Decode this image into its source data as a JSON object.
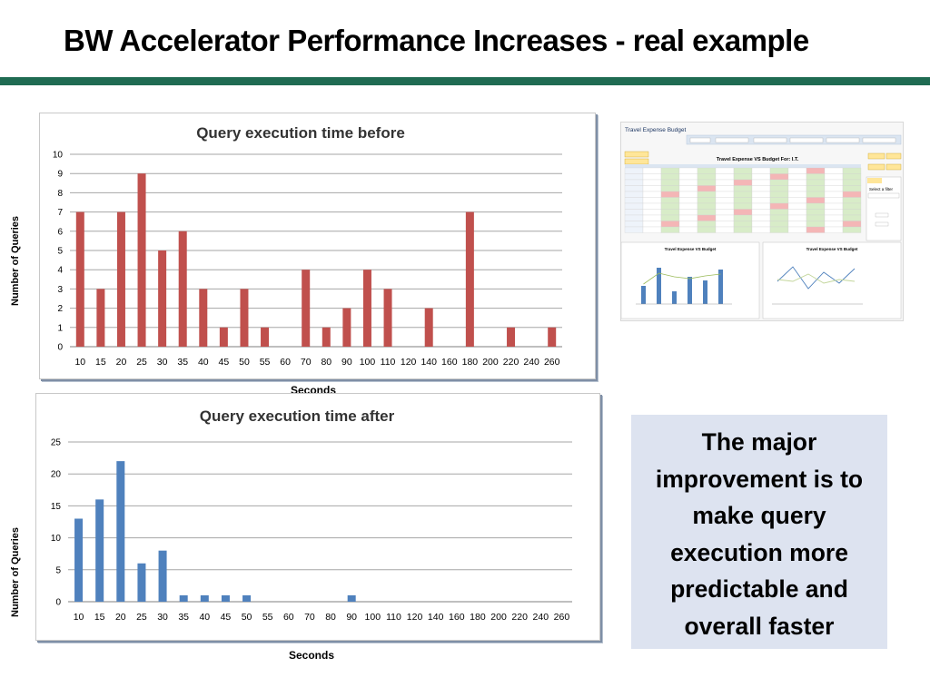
{
  "slide": {
    "title": "BW Accelerator Performance Increases - real example"
  },
  "note": {
    "lines": [
      "The major",
      "improvement is to",
      "make query",
      "execution more",
      "predictable and",
      "overall faster"
    ]
  },
  "app_screenshot": {
    "title": "Travel Expense Budget",
    "grid_title": "Travel Expense VS Budget For: I.T.",
    "chart1_title": "Travel Expense VS Budget",
    "chart2_title": "Travel Expense VS Budget",
    "filter_label": "Select a filter",
    "months": [
      "Jan",
      "Feb",
      "Mar",
      "Apr",
      "May",
      "Jun"
    ],
    "legend": [
      "Budget",
      "Actual"
    ]
  },
  "colors": {
    "before": "#c0504d",
    "after": "#4f81bd",
    "accent_rule": "#1f6b52",
    "note_bg": "#dde3f0"
  },
  "chart_data": [
    {
      "type": "bar",
      "title": "Query execution time before",
      "xlabel": "Seconds",
      "ylabel": "Number of Queries",
      "ylim": [
        0,
        10
      ],
      "grid": true,
      "categories": [
        "10",
        "15",
        "20",
        "25",
        "30",
        "35",
        "40",
        "45",
        "50",
        "55",
        "60",
        "70",
        "80",
        "90",
        "100",
        "110",
        "120",
        "140",
        "160",
        "180",
        "200",
        "220",
        "240",
        "260"
      ],
      "values": [
        7,
        3,
        7,
        9,
        5,
        6,
        3,
        1,
        3,
        1,
        0,
        4,
        1,
        2,
        4,
        3,
        0,
        2,
        0,
        7,
        0,
        1,
        0,
        1
      ]
    },
    {
      "type": "bar",
      "title": "Query execution time after",
      "xlabel": "Seconds",
      "ylabel": "Number of Queries",
      "ylim": [
        0,
        25
      ],
      "grid": true,
      "categories": [
        "10",
        "15",
        "20",
        "25",
        "30",
        "35",
        "40",
        "45",
        "50",
        "55",
        "60",
        "70",
        "80",
        "90",
        "100",
        "110",
        "120",
        "140",
        "160",
        "180",
        "200",
        "220",
        "240",
        "260"
      ],
      "values": [
        13,
        16,
        22,
        6,
        8,
        1,
        1,
        1,
        1,
        0,
        0,
        0,
        0,
        1,
        0,
        0,
        0,
        0,
        0,
        0,
        0,
        0,
        0,
        0
      ]
    }
  ]
}
